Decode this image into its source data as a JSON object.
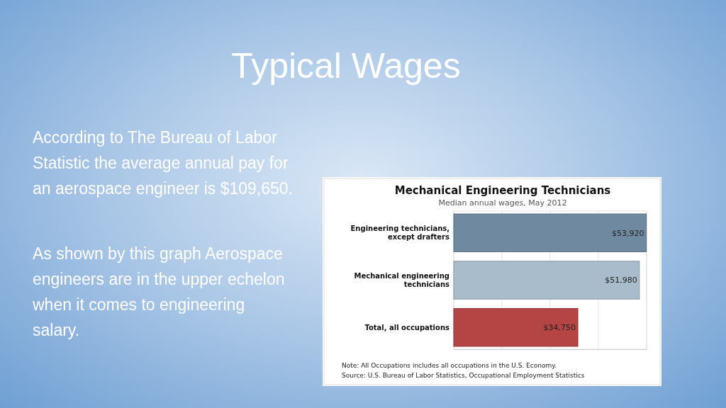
{
  "chart_data": {
    "type": "bar",
    "orientation": "horizontal",
    "title": "Mechanical Engineering Technicians",
    "subtitle": "Median annual wages, May 2012",
    "categories": [
      "Engineering technicians, except drafters",
      "Mechanical engineering technicians",
      "Total, all occupations"
    ],
    "values": [
      53920,
      51980,
      34750
    ],
    "colors": [
      "#6f8aa0",
      "#a9bccb",
      "#b54444"
    ],
    "value_labels": [
      "$53,920",
      "$51,980",
      "$34,750"
    ],
    "xlim": [
      0,
      54000
    ],
    "xticks": [
      {
        "value": 0,
        "label": null
      },
      {
        "value": 13500,
        "label": null
      },
      {
        "value": 27000,
        "label": null
      },
      {
        "value": 40500,
        "label": null
      },
      {
        "value": 54000,
        "label": null
      }
    ],
    "grid": "x",
    "tick_labels": "y",
    "annotations": [
      "Typical Wages",
      "According to The Bureau of Labor Statistic the average annual pay for an aerospace engineer is $109,650.",
      "As shown by this graph Aerospace engineers are in the upper echelon when it comes to engineering salary.",
      "Note: All Occupations includes all occupations in the U.S. Economy.",
      "Source: U.S. Bureau of Labor Statistics, Occupational Employment Statistics"
    ]
  }
}
